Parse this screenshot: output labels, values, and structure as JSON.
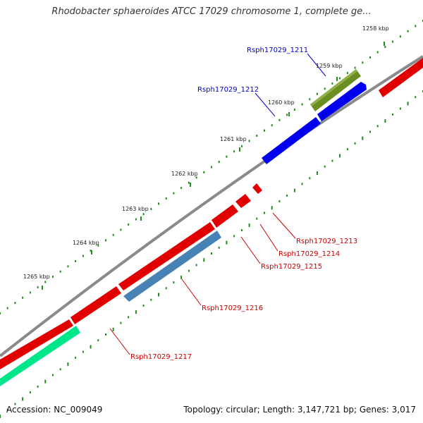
{
  "title": "Rhodobacter sphaeroides ATCC 17029 chromosome 1, complete ge...",
  "footer": {
    "accession": "Accession: NC_009049",
    "summary": "Topology: circular; Length: 3,147,721 bp; Genes: 3,017"
  },
  "ticks": [
    "1258 kbp",
    "1259 kbp",
    "1260 kbp",
    "1261 kbp",
    "1262 kbp",
    "1263 kbp",
    "1264 kbp",
    "1265 kbp"
  ],
  "genes": [
    {
      "id": "Rsph17029_1211",
      "color": "#0000cc"
    },
    {
      "id": "Rsph17029_1212",
      "color": "#0000cc"
    },
    {
      "id": "Rsph17029_1213",
      "color": "#cc0000"
    },
    {
      "id": "Rsph17029_1214",
      "color": "#cc0000"
    },
    {
      "id": "Rsph17029_1215",
      "color": "#cc0000"
    },
    {
      "id": "Rsph17029_1216",
      "color": "#cc0000"
    },
    {
      "id": "Rsph17029_1217",
      "color": "#cc0000"
    }
  ],
  "colors": {
    "backbone": "#8a8a8a",
    "forward_cds": "#e00000",
    "reverse_cds": "#e00000",
    "blue_cds": "#0000ee",
    "olive_cds": "#6b8e23",
    "steel_cds": "#4682b4",
    "spring_cds": "#00e68a",
    "tick_major": "#228b22",
    "tick_minor": "#228b22"
  }
}
